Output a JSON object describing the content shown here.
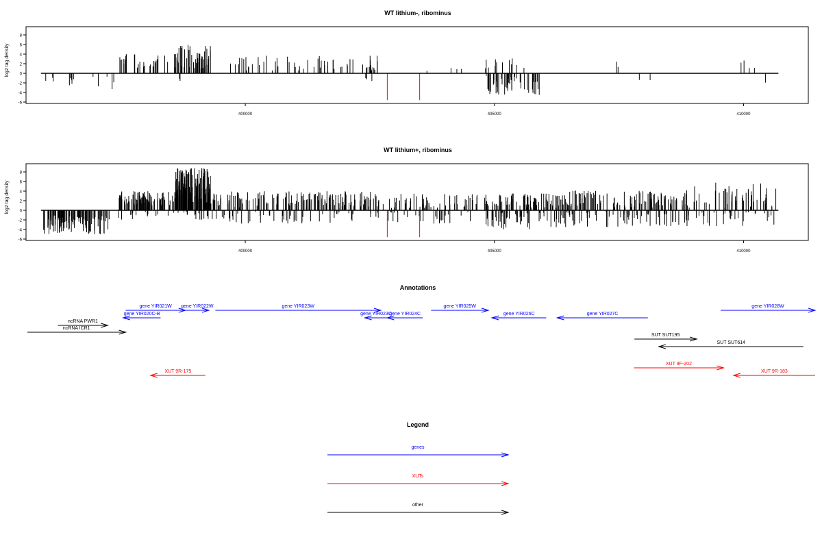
{
  "colors": {
    "genes": "#0000ff",
    "xuts": "#ff0000",
    "other": "#000000",
    "bars": "#000000",
    "highlight": "#ff0000"
  },
  "chart_data": [
    {
      "type": "bar",
      "title": "WT lithium-, ribominus",
      "ylabel": "log2 tag density",
      "xlabel": "",
      "xlim": [
        395600,
        411300
      ],
      "ylim": [
        -6,
        9
      ],
      "xticks": [
        400000,
        405000,
        410000
      ],
      "xtick_labels": [
        "400000",
        "405000",
        "410000"
      ],
      "yticks": [
        -6,
        -4,
        -2,
        0,
        2,
        4,
        6,
        8
      ],
      "ytick_labels": [
        "-6",
        "-4",
        "-2",
        "0",
        "2",
        "4",
        "6",
        "8"
      ],
      "baseline_range": [
        395900,
        410700
      ],
      "highlight_bars": [
        {
          "x": 402850,
          "y": -5.6
        },
        {
          "x": 403500,
          "y": -5.6
        }
      ],
      "segments": [
        {
          "from": 395950,
          "to": 396700,
          "count": 8,
          "sign": -1,
          "min": 0.5,
          "max": 3.0
        },
        {
          "from": 396700,
          "to": 397450,
          "count": 5,
          "sign": -1,
          "min": 0.5,
          "max": 3.5
        },
        {
          "from": 397450,
          "to": 398600,
          "count": 30,
          "sign": 1,
          "min": 1.0,
          "max": 4.0
        },
        {
          "from": 398600,
          "to": 399300,
          "count": 50,
          "sign": 1,
          "min": 1.0,
          "max": 6.0
        },
        {
          "from": 398600,
          "to": 398700,
          "count": 2,
          "sign": -1,
          "min": 0.5,
          "max": 1.8
        },
        {
          "from": 399700,
          "to": 402700,
          "count": 60,
          "sign": 1,
          "min": 0.6,
          "max": 3.7
        },
        {
          "from": 402400,
          "to": 402700,
          "count": 4,
          "sign": -1,
          "min": 0.5,
          "max": 2.0
        },
        {
          "from": 403600,
          "to": 404600,
          "count": 4,
          "sign": 1,
          "min": 0.5,
          "max": 1.5
        },
        {
          "from": 404800,
          "to": 405900,
          "count": 50,
          "sign": -1,
          "min": 0.5,
          "max": 4.5
        },
        {
          "from": 404800,
          "to": 405800,
          "count": 12,
          "sign": 1,
          "min": 0.5,
          "max": 3.5
        },
        {
          "from": 407400,
          "to": 407500,
          "count": 2,
          "sign": 1,
          "min": 0.8,
          "max": 2.6
        },
        {
          "from": 407600,
          "to": 408700,
          "count": 2,
          "sign": -1,
          "min": 0.6,
          "max": 2.2
        },
        {
          "from": 409900,
          "to": 410600,
          "count": 4,
          "sign": 1,
          "min": 0.8,
          "max": 2.8
        },
        {
          "from": 410400,
          "to": 410600,
          "count": 1,
          "sign": -1,
          "min": 1.5,
          "max": 2.2
        }
      ]
    },
    {
      "type": "bar",
      "title": "WT lithium+, ribominus",
      "ylabel": "log2 tag density",
      "xlabel": "",
      "xlim": [
        395600,
        411300
      ],
      "ylim": [
        -6,
        9
      ],
      "xticks": [
        400000,
        405000,
        410000
      ],
      "xtick_labels": [
        "400000",
        "405000",
        "410000"
      ],
      "yticks": [
        -6,
        -4,
        -2,
        0,
        2,
        4,
        6,
        8
      ],
      "ytick_labels": [
        "-6",
        "-4",
        "-2",
        "0",
        "2",
        "4",
        "6",
        "8"
      ],
      "baseline_range": [
        395900,
        410700
      ],
      "highlight_bars": [
        {
          "x": 402850,
          "y": -5.6
        },
        {
          "x": 403500,
          "y": -5.6
        }
      ],
      "segments": [
        {
          "from": 395950,
          "to": 397300,
          "count": 110,
          "sign": -1,
          "min": 1.0,
          "max": 5.0
        },
        {
          "from": 397450,
          "to": 398600,
          "count": 90,
          "sign": 1,
          "min": 1.0,
          "max": 4.0
        },
        {
          "from": 397450,
          "to": 398600,
          "count": 15,
          "sign": -1,
          "min": 0.3,
          "max": 2.0
        },
        {
          "from": 398600,
          "to": 399300,
          "count": 140,
          "sign": 1,
          "min": 1.5,
          "max": 8.8
        },
        {
          "from": 398600,
          "to": 399300,
          "count": 15,
          "sign": -1,
          "min": 0.3,
          "max": 2.0
        },
        {
          "from": 399300,
          "to": 402600,
          "count": 160,
          "sign": 1,
          "min": 0.5,
          "max": 4.0
        },
        {
          "from": 399300,
          "to": 402600,
          "count": 50,
          "sign": -1,
          "min": 0.3,
          "max": 2.8
        },
        {
          "from": 402600,
          "to": 404800,
          "count": 60,
          "sign": 1,
          "min": 0.5,
          "max": 3.5
        },
        {
          "from": 402600,
          "to": 404800,
          "count": 30,
          "sign": -1,
          "min": 0.3,
          "max": 2.8
        },
        {
          "from": 404800,
          "to": 406300,
          "count": 80,
          "sign": 1,
          "min": 0.5,
          "max": 3.5
        },
        {
          "from": 404800,
          "to": 406300,
          "count": 50,
          "sign": -1,
          "min": 0.5,
          "max": 4.0
        },
        {
          "from": 406300,
          "to": 409000,
          "count": 120,
          "sign": 1,
          "min": 0.5,
          "max": 4.2
        },
        {
          "from": 406300,
          "to": 409000,
          "count": 70,
          "sign": -1,
          "min": 0.3,
          "max": 3.5
        },
        {
          "from": 409000,
          "to": 410700,
          "count": 50,
          "sign": 1,
          "min": 0.5,
          "max": 5.8
        },
        {
          "from": 409000,
          "to": 410700,
          "count": 30,
          "sign": -1,
          "min": 0.3,
          "max": 3.5
        }
      ]
    }
  ],
  "annotations": {
    "title": "Annotations",
    "items": [
      {
        "label": "gene YIR021W",
        "start": 397600,
        "end": 398800,
        "dir": "+",
        "kind": "gene",
        "row": 0
      },
      {
        "label": "gene YIR022W",
        "start": 398800,
        "end": 399270,
        "dir": "+",
        "kind": "gene",
        "row": 0
      },
      {
        "label": "gene YIR023W",
        "start": 399400,
        "end": 402720,
        "dir": "+",
        "kind": "gene",
        "row": 0
      },
      {
        "label": "gene YIR025W",
        "start": 403730,
        "end": 404880,
        "dir": "+",
        "kind": "gene",
        "row": 0
      },
      {
        "label": "gene YIR028W",
        "start": 409540,
        "end": 411500,
        "dir": "+",
        "kind": "gene",
        "row": 0
      },
      {
        "label": "gene YIR020C-B",
        "start": 397550,
        "end": 398300,
        "dir": "-",
        "kind": "gene",
        "row": 1
      },
      {
        "label": "gene YIR023C",
        "start": 402400,
        "end": 402850,
        "dir": "-",
        "kind": "gene",
        "row": 1
      },
      {
        "label": "gene YIR024C",
        "start": 402850,
        "end": 403560,
        "dir": "-",
        "kind": "gene",
        "row": 1
      },
      {
        "label": "gene YIR026C",
        "start": 404950,
        "end": 406040,
        "dir": "-",
        "kind": "gene",
        "row": 1
      },
      {
        "label": "gene YIR027C",
        "start": 406260,
        "end": 408080,
        "dir": "-",
        "kind": "gene",
        "row": 1
      },
      {
        "label": "ncRNA PWR1",
        "start": 396240,
        "end": 397240,
        "dir": "+",
        "kind": "other",
        "row": 2
      },
      {
        "label": "ncRNA ICR1",
        "start": 395600,
        "end": 397600,
        "dir": "+",
        "kind": "other",
        "row": 3
      },
      {
        "label": "SUT SUT195",
        "start": 407810,
        "end": 409060,
        "dir": "+",
        "kind": "other",
        "row": 4
      },
      {
        "label": "SUT SUT614",
        "start": 408300,
        "end": 411200,
        "dir": "-",
        "kind": "other",
        "row": 5
      },
      {
        "label": "XUT 9F-202",
        "start": 407800,
        "end": 409600,
        "dir": "+",
        "kind": "xut",
        "row": 6
      },
      {
        "label": "XUT 9R-175",
        "start": 398100,
        "end": 399200,
        "dir": "-",
        "kind": "xut",
        "row": 7
      },
      {
        "label": "XUT 9R-183",
        "start": 409800,
        "end": 411450,
        "dir": "-",
        "kind": "xut",
        "row": 7
      }
    ]
  },
  "legend": {
    "title": "Legend",
    "items": [
      {
        "label": "genes",
        "kind": "gene"
      },
      {
        "label": "XUTs",
        "kind": "xut"
      },
      {
        "label": "other",
        "kind": "other"
      }
    ]
  }
}
